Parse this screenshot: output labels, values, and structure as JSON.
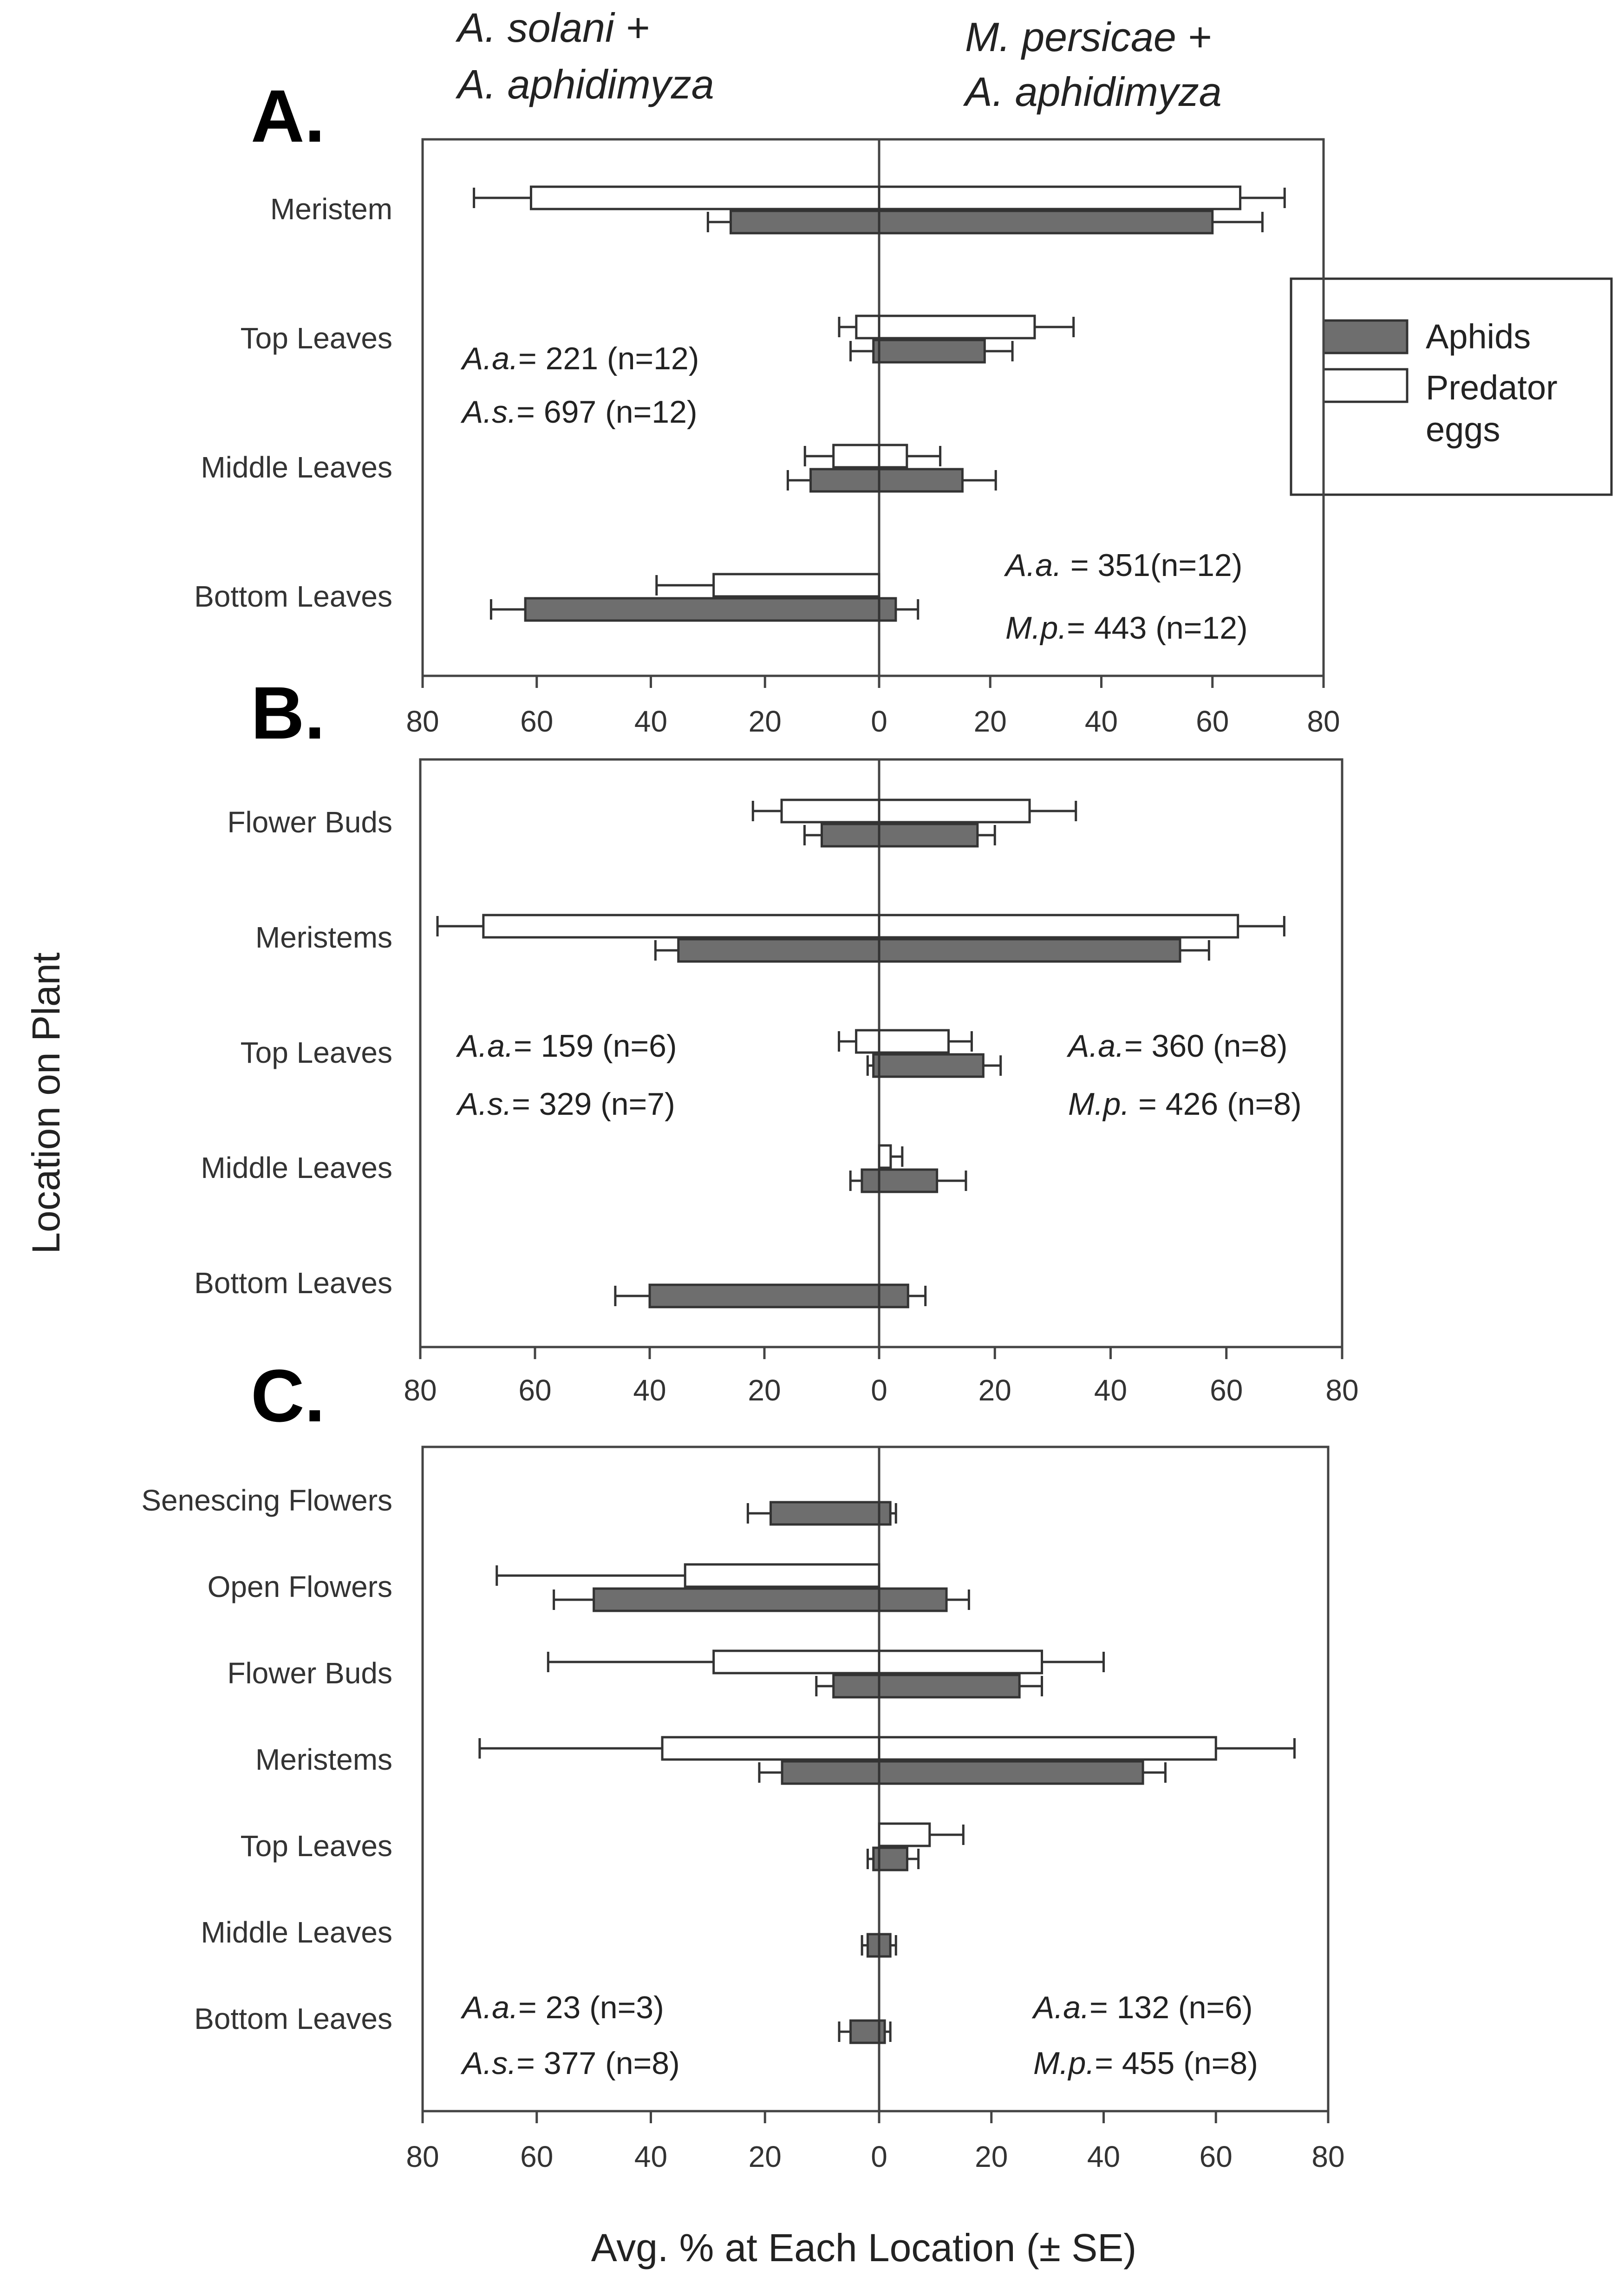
{
  "headers": {
    "left_line1": "A. solani +",
    "left_line2": "A. aphidimyza",
    "right_line1": "M. persicae +",
    "right_line2": "A. aphidimyza"
  },
  "y_axis_label": "Location on Plant",
  "x_axis_label": "Avg. % at Each Location (± SE)",
  "legend": {
    "aphids": "Aphids",
    "eggs_line1": "Predator",
    "eggs_line2": "eggs"
  },
  "colors": {
    "aphids": "#6e6e6e",
    "eggs": "#ffffff",
    "axis": "#444444"
  },
  "tick_labels": [
    "80",
    "60",
    "40",
    "20",
    "0",
    "20",
    "40",
    "60",
    "80"
  ],
  "chart_data": [
    {
      "type": "bar",
      "panel": "A.",
      "orientation": "horizontal-butterfly",
      "xlim": [
        -80,
        80
      ],
      "categories": [
        "Meristem",
        "Top Leaves",
        "Middle Leaves",
        "Bottom Leaves"
      ],
      "series": [
        {
          "name": "Predator eggs",
          "left": [
            61,
            4,
            8,
            29
          ],
          "left_err": [
            10,
            3,
            5,
            10
          ],
          "right": [
            65,
            28,
            5,
            0
          ],
          "right_err": [
            8,
            7,
            6,
            0
          ]
        },
        {
          "name": "Aphids",
          "left": [
            26,
            1,
            12,
            62
          ],
          "left_err": [
            4,
            4,
            4,
            6
          ],
          "right": [
            60,
            19,
            15,
            3
          ],
          "right_err": [
            9,
            5,
            6,
            4
          ]
        }
      ],
      "annotations": {
        "left_line1_sp": "A.a.",
        "left_line1_val": "= 221 (n=12)",
        "left_line2_sp": "A.s.",
        "left_line2_val": "= 697 (n=12)",
        "right_line1_sp": "A.a.",
        "right_line1_val": " = 351(n=12)",
        "right_line2_sp": "M.p.",
        "right_line2_val": "= 443 (n=12)"
      }
    },
    {
      "type": "bar",
      "panel": "B.",
      "orientation": "horizontal-butterfly",
      "xlim": [
        -80,
        80
      ],
      "categories": [
        "Flower Buds",
        "Meristems",
        "Top Leaves",
        "Middle Leaves",
        "Bottom Leaves"
      ],
      "series": [
        {
          "name": "Predator eggs",
          "left": [
            17,
            69,
            4,
            0,
            0
          ],
          "left_err": [
            5,
            8,
            3,
            0,
            0
          ],
          "right": [
            26,
            62,
            12,
            2,
            0
          ],
          "right_err": [
            8,
            8,
            4,
            2,
            0
          ]
        },
        {
          "name": "Aphids",
          "left": [
            10,
            35,
            1,
            3,
            40
          ],
          "left_err": [
            3,
            4,
            1,
            2,
            6
          ],
          "right": [
            17,
            52,
            18,
            10,
            5
          ],
          "right_err": [
            3,
            5,
            3,
            5,
            3
          ]
        }
      ],
      "annotations": {
        "left_line1_sp": "A.a.",
        "left_line1_val": "= 159 (n=6)",
        "left_line2_sp": "A.s.",
        "left_line2_val": "= 329 (n=7)",
        "right_line1_sp": "A.a.",
        "right_line1_val": "= 360 (n=8)",
        "right_line2_sp": "M.p.",
        "right_line2_val": " = 426 (n=8)"
      }
    },
    {
      "type": "bar",
      "panel": "C.",
      "orientation": "horizontal-butterfly",
      "xlim": [
        -80,
        80
      ],
      "categories": [
        "Senescing Flowers",
        "Open Flowers",
        "Flower Buds",
        "Meristems",
        "Top Leaves",
        "Middle Leaves",
        "Bottom Leaves"
      ],
      "series": [
        {
          "name": "Predator eggs",
          "left": [
            0,
            34,
            29,
            38,
            0,
            0,
            0
          ],
          "left_err": [
            0,
            33,
            29,
            32,
            0,
            0,
            0
          ],
          "right": [
            0,
            0,
            29,
            60,
            9,
            0,
            0
          ],
          "right_err": [
            0,
            0,
            11,
            14,
            6,
            0,
            0
          ]
        },
        {
          "name": "Aphids",
          "left": [
            19,
            50,
            8,
            17,
            1,
            2,
            5
          ],
          "left_err": [
            4,
            7,
            3,
            4,
            1,
            1,
            2
          ],
          "right": [
            2,
            12,
            25,
            47,
            5,
            2,
            1
          ],
          "right_err": [
            1,
            4,
            4,
            4,
            2,
            1,
            1
          ]
        }
      ],
      "annotations": {
        "left_line1_sp": "A.a.",
        "left_line1_val": "= 23 (n=3)",
        "left_line2_sp": "A.s.",
        "left_line2_val": "= 377 (n=8)",
        "right_line1_sp": "A.a.",
        "right_line1_val": "= 132 (n=6)",
        "right_line2_sp": "M.p.",
        "right_line2_val": "= 455 (n=8)"
      }
    }
  ]
}
